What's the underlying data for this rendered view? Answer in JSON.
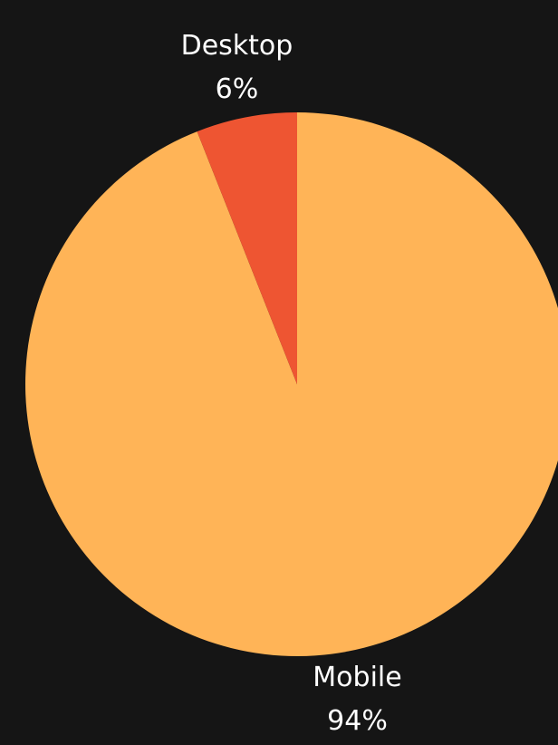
{
  "chart_data": {
    "type": "pie",
    "categories": [
      "Mobile",
      "Desktop"
    ],
    "values": [
      94,
      6
    ],
    "value_labels": [
      "94%",
      "6%"
    ],
    "colors": [
      "#FFB457",
      "#EE5532"
    ]
  }
}
